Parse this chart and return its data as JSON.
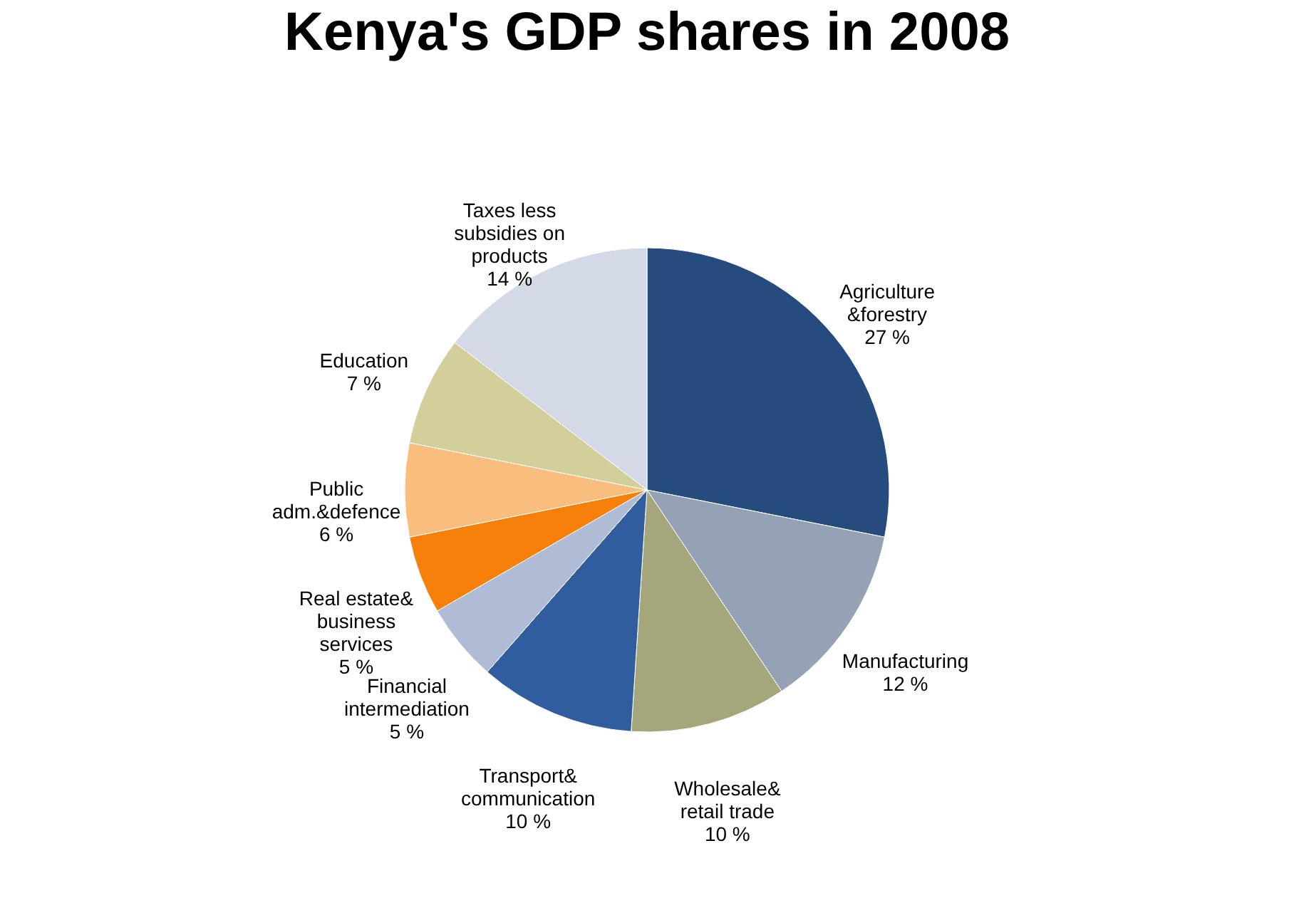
{
  "chart_data": {
    "type": "pie",
    "title": "Kenya's GDP shares in 2008",
    "categories": [
      "Agriculture\n&forestry",
      "Manufacturing",
      "Wholesale&\nretail trade",
      "Transport&\ncommunication",
      "Financial\nintermediation",
      "Real estate&\nbusiness\nservices",
      "Public\nadm.&defence",
      "Education",
      "Taxes less\nsubsidies on\nproducts"
    ],
    "values": [
      27,
      12,
      10,
      10,
      5,
      5,
      6,
      7,
      14
    ],
    "value_labels": [
      "27 %",
      "12 %",
      "10 %",
      "10 %",
      "5 %",
      "5 %",
      "6 %",
      "7 %",
      "14 %"
    ],
    "colors": [
      "#264b7f",
      "#95a2b5",
      "#a6a67c",
      "#2f5d9e",
      "#b0bcd6",
      "#f7800a",
      "#f9be7d",
      "#d2cf9b",
      "#d3d9e6"
    ],
    "legend": false
  }
}
